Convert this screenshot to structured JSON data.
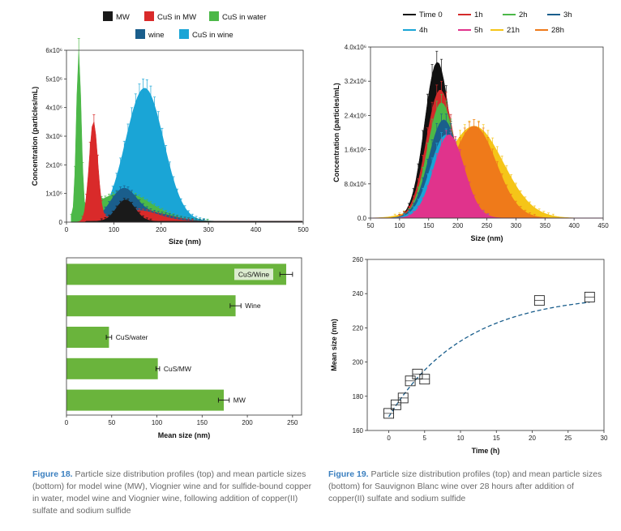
{
  "chart_data": [
    {
      "id": "fig18_top",
      "type": "area",
      "xlabel": "Size (nm)",
      "ylabel": "Concentration (particles/mL)",
      "xlim": [
        0,
        500
      ],
      "ylim": [
        0,
        6000000
      ],
      "xticks": [
        "0",
        "100",
        "200",
        "300",
        "400",
        "500"
      ],
      "yticks": [
        "0",
        "1x10⁶",
        "2x10⁶",
        "3x10⁶",
        "4x10⁶",
        "5x10⁶",
        "6x10⁶"
      ],
      "legend": [
        "MW",
        "CuS in MW",
        "CuS in water",
        "wine",
        "CuS in wine"
      ],
      "series": [
        {
          "name": "CuS in wine",
          "color": "#1aa5d6",
          "peaks": [
            {
              "mu": 165,
              "sigma": 40,
              "amp": 4650000
            },
            {
              "mu": 58,
              "sigma": 7,
              "amp": 1200000
            }
          ]
        },
        {
          "name": "CuS in water",
          "color": "#4cb848",
          "peaks": [
            {
              "mu": 26,
              "sigma": 5,
              "amp": 5700000
            },
            {
              "mu": 58,
              "sigma": 6,
              "amp": 2300000
            },
            {
              "mu": 120,
              "sigma": 60,
              "amp": 1000000
            }
          ]
        },
        {
          "name": "wine",
          "color": "#1a5e8c",
          "peaks": [
            {
              "mu": 120,
              "sigma": 28,
              "amp": 1100000
            },
            {
              "mu": 55,
              "sigma": 5,
              "amp": 500000
            },
            {
              "mu": 190,
              "sigma": 40,
              "amp": 260000
            }
          ]
        },
        {
          "name": "CuS in MW",
          "color": "#d92a2a",
          "peaks": [
            {
              "mu": 57,
              "sigma": 9,
              "amp": 3450000
            },
            {
              "mu": 150,
              "sigma": 45,
              "amp": 380000
            }
          ]
        },
        {
          "name": "MW",
          "color": "#1a1a1a",
          "peaks": [
            {
              "mu": 125,
              "sigma": 20,
              "amp": 750000
            }
          ]
        }
      ]
    },
    {
      "id": "fig18_bottom",
      "type": "bar",
      "orientation": "horizontal",
      "xlabel": "Mean size (nm)",
      "xlim": [
        0,
        260
      ],
      "xticks": [
        "0",
        "50",
        "100",
        "150",
        "200",
        "250"
      ],
      "color": "#6ab43c",
      "categories": [
        "CuS/Wine",
        "Wine",
        "CuS/water",
        "CuS/MW",
        "MW"
      ],
      "values": [
        243,
        187,
        47,
        101,
        174
      ],
      "errors": [
        7,
        6,
        3,
        2,
        6
      ]
    },
    {
      "id": "fig19_top",
      "type": "area",
      "xlabel": "Size (nm)",
      "ylabel": "Concentration (particles/mL)",
      "xlim": [
        50,
        450
      ],
      "ylim": [
        0,
        4000000
      ],
      "xticks": [
        "50",
        "100",
        "150",
        "200",
        "250",
        "300",
        "350",
        "400",
        "450"
      ],
      "yticks": [
        "0.0",
        "8.0x10⁵",
        "1.6x10⁶",
        "2.4x10⁶",
        "3.2x10⁶",
        "4.0x10⁶"
      ],
      "legend": [
        "Time 0",
        "1h",
        "2h",
        "3h",
        "4h",
        "5h",
        "21h",
        "28h"
      ],
      "series": [
        {
          "name": "Time 0",
          "color": "#111111",
          "mu": 165,
          "sigma": 22,
          "amp": 3650000
        },
        {
          "name": "21h",
          "color": "#f5c518",
          "mu": 228,
          "sigma": 50,
          "amp": 2150000
        },
        {
          "name": "28h",
          "color": "#ef7a1a",
          "mu": 228,
          "sigma": 38,
          "amp": 2150000
        },
        {
          "name": "1h",
          "color": "#d42a2a",
          "mu": 170,
          "sigma": 24,
          "amp": 3000000
        },
        {
          "name": "2h",
          "color": "#4cb848",
          "mu": 172,
          "sigma": 24,
          "amp": 2700000
        },
        {
          "name": "3h",
          "color": "#1a5e8c",
          "mu": 176,
          "sigma": 26,
          "amp": 2300000
        },
        {
          "name": "4h",
          "color": "#1aa5d6",
          "mu": 180,
          "sigma": 27,
          "amp": 1950000
        },
        {
          "name": "5h",
          "color": "#e0338c",
          "mu": 185,
          "sigma": 26,
          "amp": 1950000
        }
      ]
    },
    {
      "id": "fig19_bottom",
      "type": "scatter",
      "xlabel": "Time (h)",
      "ylabel": "Mean size (nm)",
      "xlim": [
        -3,
        30
      ],
      "ylim": [
        160,
        260
      ],
      "xticks": [
        "0",
        "5",
        "10",
        "15",
        "20",
        "25",
        "30"
      ],
      "yticks": [
        "160",
        "180",
        "200",
        "220",
        "240",
        "260"
      ],
      "points": [
        {
          "x": 0,
          "y": 170
        },
        {
          "x": 1,
          "y": 175
        },
        {
          "x": 2,
          "y": 179
        },
        {
          "x": 3,
          "y": 189
        },
        {
          "x": 4,
          "y": 193
        },
        {
          "x": 5,
          "y": 190
        },
        {
          "x": 21,
          "y": 236
        },
        {
          "x": 28,
          "y": 238
        }
      ],
      "fit_color": "#1a5e8c"
    }
  ],
  "captions": {
    "fig18_label": "Figure 18.",
    "fig18_text": "Particle size distribution profiles (top) and mean particle sizes (bottom) for model wine (MW), Viognier wine and for sulfide-bound copper in water, model wine and Viognier wine, following addition of copper(II) sulfate and sodium sulfide",
    "fig19_label": "Figure 19.",
    "fig19_text": "Particle size distribution profiles (top) and mean particle sizes (bottom) for Sauvignon Blanc wine over 28 hours after addition of copper(II) sulfate and sodium sulfide"
  }
}
